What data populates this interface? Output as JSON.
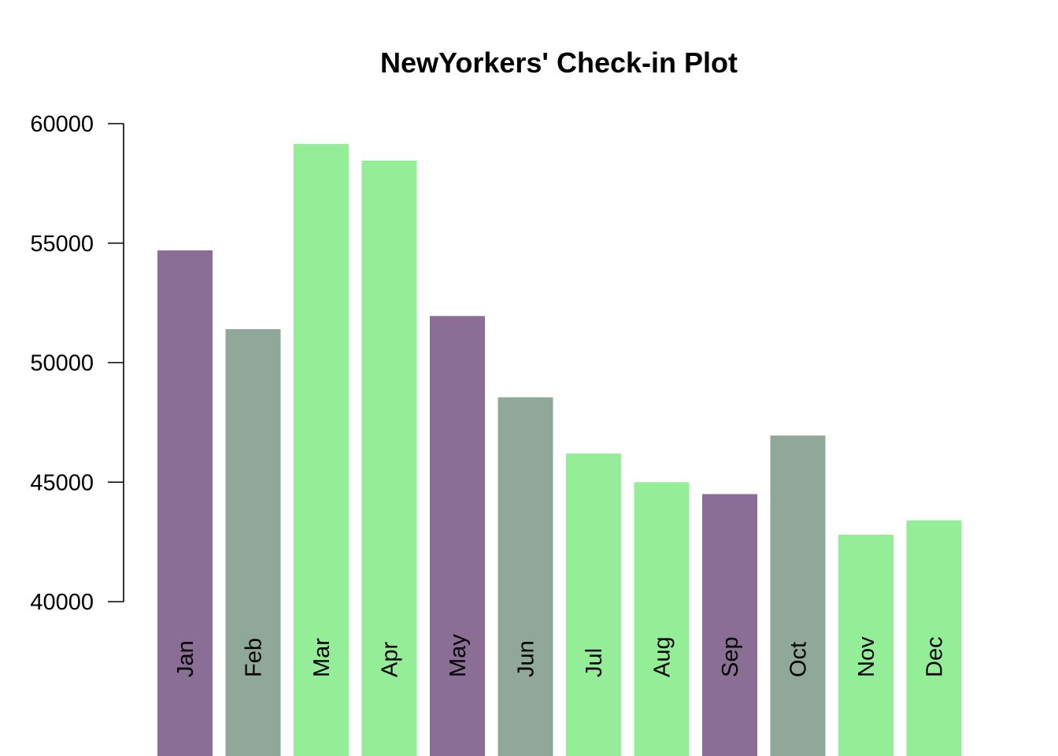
{
  "chart_data": {
    "type": "bar",
    "title": "NewYorkers' Check-in Plot",
    "xlabel": "",
    "ylabel": "",
    "categories": [
      "Jan",
      "Feb",
      "Mar",
      "Apr",
      "May",
      "Jun",
      "Jul",
      "Aug",
      "Sep",
      "Oct",
      "Nov",
      "Dec"
    ],
    "values": [
      54700,
      51400,
      59150,
      58450,
      51950,
      48550,
      46200,
      45000,
      44500,
      46950,
      42800,
      43400
    ],
    "bar_colors": [
      "#8b6e96",
      "#8fa89a",
      "#94ee98",
      "#94ee98",
      "#8b6e96",
      "#8fa89a",
      "#94ee98",
      "#94ee98",
      "#8b6e96",
      "#8fa89a",
      "#94ee98",
      "#94ee98"
    ],
    "yticks": [
      40000,
      45000,
      50000,
      55000,
      60000
    ],
    "ytick_labels": [
      "40000",
      "45000",
      "50000",
      "55000",
      "60000"
    ],
    "ylim": [
      40000,
      60000
    ],
    "grid": false,
    "legend": "none"
  }
}
